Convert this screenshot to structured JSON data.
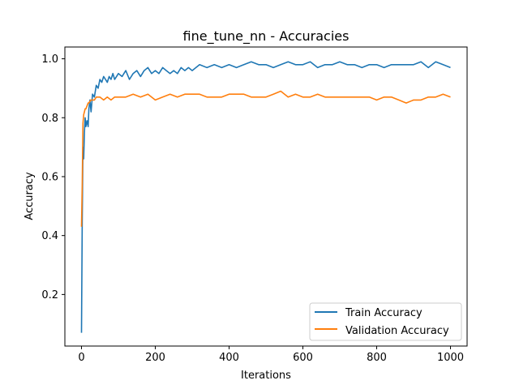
{
  "chart_data": {
    "type": "line",
    "title": "fine_tune_nn - Accuracies",
    "xlabel": "Iterations",
    "ylabel": "Accuracy",
    "xlim": [
      -45,
      1045
    ],
    "ylim": [
      0.025,
      1.04
    ],
    "xticks": [
      0,
      200,
      400,
      600,
      800,
      1000
    ],
    "yticks": [
      0.2,
      0.4,
      0.6,
      0.8,
      1.0
    ],
    "xtick_labels": [
      "0",
      "200",
      "400",
      "600",
      "800",
      "1000"
    ],
    "ytick_labels": [
      "0.2",
      "0.4",
      "0.6",
      "0.8",
      "1.0"
    ],
    "grid": false,
    "legend_position": "lower-right",
    "series": [
      {
        "name": "Train Accuracy",
        "color": "#1f77b4",
        "x": [
          0,
          2,
          4,
          6,
          8,
          10,
          12,
          15,
          18,
          20,
          23,
          26,
          30,
          35,
          40,
          45,
          50,
          55,
          60,
          65,
          70,
          75,
          80,
          85,
          90,
          95,
          100,
          110,
          120,
          130,
          140,
          150,
          160,
          170,
          180,
          190,
          200,
          210,
          220,
          230,
          240,
          250,
          260,
          270,
          280,
          290,
          300,
          320,
          340,
          360,
          380,
          400,
          420,
          440,
          460,
          480,
          500,
          520,
          540,
          560,
          580,
          600,
          620,
          640,
          660,
          680,
          700,
          720,
          740,
          760,
          780,
          800,
          820,
          840,
          860,
          880,
          900,
          920,
          940,
          960,
          980,
          1000
        ],
        "values": [
          0.07,
          0.45,
          0.7,
          0.66,
          0.75,
          0.8,
          0.77,
          0.79,
          0.77,
          0.83,
          0.86,
          0.82,
          0.88,
          0.87,
          0.91,
          0.9,
          0.93,
          0.92,
          0.94,
          0.93,
          0.92,
          0.94,
          0.93,
          0.95,
          0.93,
          0.94,
          0.95,
          0.94,
          0.96,
          0.93,
          0.95,
          0.96,
          0.94,
          0.96,
          0.97,
          0.95,
          0.96,
          0.95,
          0.97,
          0.96,
          0.95,
          0.96,
          0.95,
          0.97,
          0.96,
          0.97,
          0.96,
          0.98,
          0.97,
          0.98,
          0.97,
          0.98,
          0.97,
          0.98,
          0.99,
          0.98,
          0.98,
          0.97,
          0.98,
          0.99,
          0.98,
          0.98,
          0.99,
          0.97,
          0.98,
          0.98,
          0.99,
          0.98,
          0.98,
          0.97,
          0.98,
          0.98,
          0.97,
          0.98,
          0.98,
          0.98,
          0.98,
          0.99,
          0.97,
          0.99,
          0.98,
          0.97
        ]
      },
      {
        "name": "Validation Accuracy",
        "color": "#ff7f0e",
        "x": [
          0,
          2,
          4,
          6,
          8,
          10,
          12,
          15,
          18,
          20,
          25,
          30,
          35,
          40,
          50,
          60,
          70,
          80,
          90,
          100,
          120,
          140,
          160,
          180,
          200,
          220,
          240,
          260,
          280,
          300,
          320,
          340,
          360,
          380,
          400,
          420,
          440,
          460,
          480,
          500,
          520,
          540,
          560,
          580,
          600,
          620,
          640,
          660,
          680,
          700,
          720,
          740,
          760,
          780,
          800,
          820,
          840,
          860,
          880,
          900,
          920,
          940,
          960,
          980,
          1000
        ],
        "values": [
          0.43,
          0.57,
          0.78,
          0.81,
          0.82,
          0.83,
          0.83,
          0.84,
          0.85,
          0.85,
          0.86,
          0.86,
          0.86,
          0.87,
          0.87,
          0.86,
          0.87,
          0.86,
          0.87,
          0.87,
          0.87,
          0.88,
          0.87,
          0.88,
          0.86,
          0.87,
          0.88,
          0.87,
          0.88,
          0.88,
          0.88,
          0.87,
          0.87,
          0.87,
          0.88,
          0.88,
          0.88,
          0.87,
          0.87,
          0.87,
          0.88,
          0.89,
          0.87,
          0.88,
          0.87,
          0.87,
          0.88,
          0.87,
          0.87,
          0.87,
          0.87,
          0.87,
          0.87,
          0.87,
          0.86,
          0.87,
          0.87,
          0.86,
          0.85,
          0.86,
          0.86,
          0.87,
          0.87,
          0.88,
          0.87
        ]
      }
    ]
  }
}
